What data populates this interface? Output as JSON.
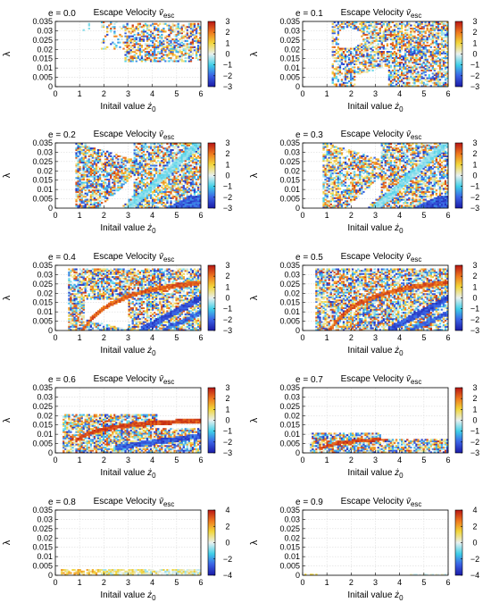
{
  "figure": {
    "panel_title": "Escape Velocity",
    "title_symbol": "v̄",
    "title_subscript": "esc",
    "xlabel_prefix": "Initail value ",
    "xlabel_symbol": "ż",
    "xlabel_subscript": "0",
    "ylabel": "λ"
  },
  "chart_data": [
    {
      "type": "heatmap",
      "panel_label": "e = 0.0",
      "title": "Escape Velocity v̄esc",
      "xlabel": "Initail value ż0",
      "ylabel": "λ",
      "xlim": [
        0,
        6
      ],
      "ylim": [
        0,
        0.035
      ],
      "x_ticks": [
        "0",
        "1",
        "2",
        "3",
        "4",
        "5",
        "6"
      ],
      "y_ticks": [
        "0",
        "0.005",
        "0.01",
        "0.015",
        "0.02",
        "0.025",
        "0.03",
        "0.035"
      ],
      "colorbar_range": [
        -3,
        3
      ],
      "colorbar_ticks": [
        "3",
        "2",
        "1",
        "0",
        "−1",
        "−2",
        "−3"
      ],
      "grid": true
    },
    {
      "type": "heatmap",
      "panel_label": "e = 0.1",
      "title": "Escape Velocity v̄esc",
      "xlabel": "Initail value ż0",
      "ylabel": "λ",
      "xlim": [
        0,
        6
      ],
      "ylim": [
        0,
        0.035
      ],
      "x_ticks": [
        "0",
        "1",
        "2",
        "3",
        "4",
        "5",
        "6"
      ],
      "y_ticks": [
        "0",
        "0.005",
        "0.01",
        "0.015",
        "0.02",
        "0.025",
        "0.03",
        "0.035"
      ],
      "colorbar_range": [
        -3,
        3
      ],
      "colorbar_ticks": [
        "3",
        "2",
        "1",
        "0",
        "−1",
        "−2",
        "−3"
      ],
      "grid": true
    },
    {
      "type": "heatmap",
      "panel_label": "e = 0.2",
      "title": "Escape Velocity v̄esc",
      "xlabel": "Initail value ż0",
      "ylabel": "λ",
      "xlim": [
        0,
        6
      ],
      "ylim": [
        0,
        0.035
      ],
      "x_ticks": [
        "0",
        "1",
        "2",
        "3",
        "4",
        "5",
        "6"
      ],
      "y_ticks": [
        "0",
        "0.005",
        "0.01",
        "0.015",
        "0.02",
        "0.025",
        "0.03",
        "0.035"
      ],
      "colorbar_range": [
        -3,
        3
      ],
      "colorbar_ticks": [
        "3",
        "2",
        "1",
        "0",
        "−1",
        "−2",
        "−3"
      ],
      "grid": true
    },
    {
      "type": "heatmap",
      "panel_label": "e = 0.3",
      "title": "Escape Velocity v̄esc",
      "xlabel": "Initail value ż0",
      "ylabel": "λ",
      "xlim": [
        0,
        6
      ],
      "ylim": [
        0,
        0.035
      ],
      "x_ticks": [
        "0",
        "1",
        "2",
        "3",
        "4",
        "5",
        "6"
      ],
      "y_ticks": [
        "0",
        "0.005",
        "0.01",
        "0.015",
        "0.02",
        "0.025",
        "0.03",
        "0.035"
      ],
      "colorbar_range": [
        -3,
        3
      ],
      "colorbar_ticks": [
        "3",
        "2",
        "1",
        "0",
        "−1",
        "−2",
        "−3"
      ],
      "grid": true
    },
    {
      "type": "heatmap",
      "panel_label": "e = 0.4",
      "title": "Escape Velocity v̄esc",
      "xlabel": "Initail value ż0",
      "ylabel": "λ",
      "xlim": [
        0,
        6
      ],
      "ylim": [
        0,
        0.035
      ],
      "x_ticks": [
        "0",
        "1",
        "2",
        "3",
        "4",
        "5",
        "6"
      ],
      "y_ticks": [
        "0",
        "0.005",
        "0.01",
        "0.015",
        "0.02",
        "0.025",
        "0.03",
        "0.035"
      ],
      "colorbar_range": [
        -3,
        3
      ],
      "colorbar_ticks": [
        "3",
        "2",
        "1",
        "0",
        "−1",
        "−2",
        "−3"
      ],
      "grid": true
    },
    {
      "type": "heatmap",
      "panel_label": "e = 0.5",
      "title": "Escape Velocity v̄esc",
      "xlabel": "Initail value ż0",
      "ylabel": "λ",
      "xlim": [
        0,
        6
      ],
      "ylim": [
        0,
        0.035
      ],
      "x_ticks": [
        "0",
        "1",
        "2",
        "3",
        "4",
        "5",
        "6"
      ],
      "y_ticks": [
        "0",
        "0.005",
        "0.01",
        "0.015",
        "0.02",
        "0.025",
        "0.03",
        "0.035"
      ],
      "colorbar_range": [
        -3,
        3
      ],
      "colorbar_ticks": [
        "3",
        "2",
        "1",
        "0",
        "−1",
        "−2",
        "−3"
      ],
      "grid": true
    },
    {
      "type": "heatmap",
      "panel_label": "e = 0.6",
      "title": "Escape Velocity v̄esc",
      "xlabel": "Initail value ż0",
      "ylabel": "λ",
      "xlim": [
        0,
        6
      ],
      "ylim": [
        0,
        0.035
      ],
      "x_ticks": [
        "0",
        "1",
        "2",
        "3",
        "4",
        "5",
        "6"
      ],
      "y_ticks": [
        "0",
        "0.005",
        "0.01",
        "0.015",
        "0.02",
        "0.025",
        "0.03",
        "0.035"
      ],
      "colorbar_range": [
        -3,
        3
      ],
      "colorbar_ticks": [
        "3",
        "2",
        "1",
        "0",
        "−1",
        "−2",
        "−3"
      ],
      "grid": true
    },
    {
      "type": "heatmap",
      "panel_label": "e = 0.7",
      "title": "Escape Velocity v̄esc",
      "xlabel": "Initail value ż0",
      "ylabel": "λ",
      "xlim": [
        0,
        6
      ],
      "ylim": [
        0,
        0.035
      ],
      "x_ticks": [
        "0",
        "1",
        "2",
        "3",
        "4",
        "5",
        "6"
      ],
      "y_ticks": [
        "0",
        "0.005",
        "0.01",
        "0.015",
        "0.02",
        "0.025",
        "0.03",
        "0.035"
      ],
      "colorbar_range": [
        -3,
        3
      ],
      "colorbar_ticks": [
        "3",
        "2",
        "1",
        "0",
        "−1",
        "−2",
        "−3"
      ],
      "grid": true
    },
    {
      "type": "heatmap",
      "panel_label": "e = 0.8",
      "title": "Escape Velocity v̄esc",
      "xlabel": "Initail value ż0",
      "ylabel": "λ",
      "xlim": [
        0,
        6
      ],
      "ylim": [
        0,
        0.035
      ],
      "x_ticks": [
        "0",
        "1",
        "2",
        "3",
        "4",
        "5",
        "6"
      ],
      "y_ticks": [
        "0",
        "0.005",
        "0.01",
        "0.015",
        "0.02",
        "0.025",
        "0.03",
        "0.035"
      ],
      "colorbar_range": [
        -4,
        4
      ],
      "colorbar_ticks": [
        "4",
        "2",
        "0",
        "−2",
        "−4"
      ],
      "grid": true
    },
    {
      "type": "heatmap",
      "panel_label": "e = 0.9",
      "title": "Escape Velocity v̄esc",
      "xlabel": "Initail value ż0",
      "ylabel": "λ",
      "xlim": [
        0,
        6
      ],
      "ylim": [
        0,
        0.035
      ],
      "x_ticks": [
        "0",
        "1",
        "2",
        "3",
        "4",
        "5",
        "6"
      ],
      "y_ticks": [
        "0",
        "0.005",
        "0.01",
        "0.015",
        "0.02",
        "0.025",
        "0.03",
        "0.035"
      ],
      "colorbar_range": [
        -4,
        4
      ],
      "colorbar_ticks": [
        "4",
        "2",
        "0",
        "−2",
        "−4"
      ],
      "grid": true
    }
  ]
}
